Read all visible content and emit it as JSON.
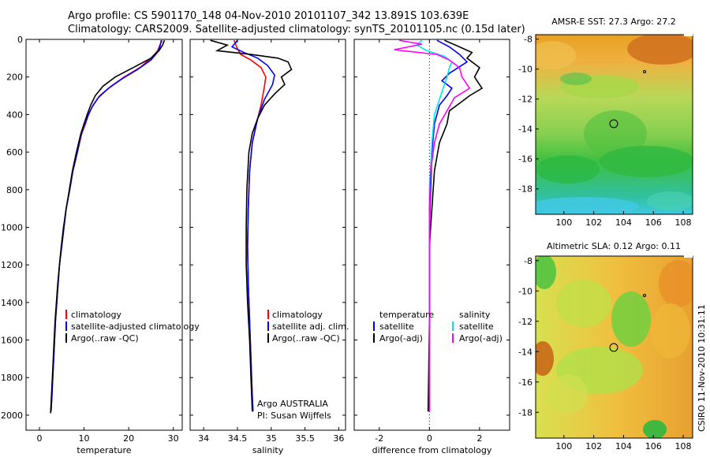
{
  "header": {
    "line1": "Argo profile: CS 5901170_148 04-Nov-2010 20101107_342 13.891S 103.639E",
    "line2": "Climatology: CARS2009. Satellite-adjusted climatology: synTS_20101105.nc (0.15d later)"
  },
  "colors": {
    "climatology": "#ff0000",
    "satellite": "#0000ff",
    "argo": "#000000",
    "salinity_satellite": "#00e5e5",
    "salinity_argo": "#ff00ff"
  },
  "chart_data": [
    {
      "type": "line",
      "id": "temperature",
      "xlabel": "temperature",
      "xlim": [
        -3,
        32
      ],
      "ylim": [
        2080,
        0
      ],
      "xticks": [
        0,
        10,
        20,
        30
      ],
      "xtick_labels": [
        "0",
        "10",
        "20",
        "30"
      ],
      "yticks": [
        0,
        200,
        400,
        600,
        800,
        1000,
        1200,
        1400,
        1600,
        1800,
        2000
      ],
      "ytick_labels": [
        "0",
        "200",
        "400",
        "600",
        "800",
        "1000",
        "1200",
        "1400",
        "1600",
        "1800",
        "2000"
      ],
      "legend": [
        "climatology",
        "satellite-adjusted climatology",
        "Argo(..raw -QC)"
      ],
      "series": [
        {
          "name": "climatology",
          "color": "#ff0000",
          "points": [
            [
              27.5,
              5
            ],
            [
              27,
              30
            ],
            [
              26.5,
              60
            ],
            [
              25,
              100
            ],
            [
              22.5,
              150
            ],
            [
              19,
              200
            ],
            [
              16,
              250
            ],
            [
              13.5,
              300
            ],
            [
              12,
              350
            ],
            [
              11,
              400
            ],
            [
              10.3,
              450
            ],
            [
              9.5,
              500
            ],
            [
              8.5,
              600
            ],
            [
              7.5,
              700
            ],
            [
              6.8,
              800
            ],
            [
              6,
              900
            ],
            [
              5.5,
              1000
            ],
            [
              5,
              1100
            ],
            [
              4.5,
              1200
            ],
            [
              4.2,
              1300
            ],
            [
              3.9,
              1400
            ],
            [
              3.6,
              1500
            ],
            [
              3.4,
              1600
            ],
            [
              3.2,
              1700
            ],
            [
              3,
              1800
            ],
            [
              2.8,
              1900
            ],
            [
              2.6,
              1980
            ]
          ]
        },
        {
          "name": "satellite-adjusted climatology",
          "color": "#0000ff",
          "points": [
            [
              27.3,
              5
            ],
            [
              27,
              40
            ],
            [
              26.4,
              70
            ],
            [
              25,
              110
            ],
            [
              22,
              160
            ],
            [
              18.5,
              210
            ],
            [
              15.5,
              260
            ],
            [
              13.2,
              310
            ],
            [
              11.8,
              360
            ],
            [
              10.8,
              410
            ],
            [
              10,
              460
            ],
            [
              9.3,
              510
            ],
            [
              8.5,
              600
            ],
            [
              7.5,
              700
            ],
            [
              6.8,
              800
            ],
            [
              6,
              900
            ],
            [
              5.5,
              1000
            ],
            [
              5,
              1100
            ],
            [
              4.5,
              1200
            ],
            [
              4.2,
              1300
            ],
            [
              3.9,
              1400
            ],
            [
              3.6,
              1500
            ],
            [
              3.4,
              1600
            ],
            [
              3.2,
              1700
            ],
            [
              3,
              1800
            ],
            [
              2.8,
              1900
            ],
            [
              2.6,
              1980
            ]
          ]
        },
        {
          "name": "Argo(..raw -QC)",
          "color": "#000000",
          "points": [
            [
              28,
              5
            ],
            [
              27.6,
              30
            ],
            [
              26.8,
              60
            ],
            [
              25,
              100
            ],
            [
              21,
              150
            ],
            [
              17,
              200
            ],
            [
              14.2,
              250
            ],
            [
              12.5,
              300
            ],
            [
              11.5,
              350
            ],
            [
              10.7,
              400
            ],
            [
              10,
              450
            ],
            [
              9.3,
              500
            ],
            [
              8.3,
              600
            ],
            [
              7.4,
              700
            ],
            [
              6.7,
              800
            ],
            [
              6,
              900
            ],
            [
              5.4,
              1000
            ],
            [
              4.9,
              1100
            ],
            [
              4.5,
              1200
            ],
            [
              4.1,
              1300
            ],
            [
              3.8,
              1400
            ],
            [
              3.5,
              1500
            ],
            [
              3.3,
              1600
            ],
            [
              3.1,
              1700
            ],
            [
              2.9,
              1800
            ],
            [
              2.7,
              1900
            ],
            [
              2.5,
              1990
            ]
          ]
        }
      ],
      "annotations": []
    },
    {
      "type": "line",
      "id": "salinity",
      "xlabel": "salinity",
      "xlim": [
        33.8,
        36.1
      ],
      "ylim": [
        2080,
        0
      ],
      "xticks": [
        34,
        34.5,
        35,
        35.5,
        36
      ],
      "xtick_labels": [
        "34",
        "34.5",
        "35",
        "35.5",
        "36"
      ],
      "yticks": [],
      "ytick_labels": [],
      "legend": [
        "climatology",
        "satellite adj. clim.",
        "Argo(..raw -QC)"
      ],
      "series": [
        {
          "name": "climatology",
          "color": "#ff0000",
          "points": [
            [
              34.45,
              5
            ],
            [
              34.5,
              50
            ],
            [
              34.55,
              80
            ],
            [
              34.7,
              110
            ],
            [
              34.85,
              150
            ],
            [
              34.92,
              200
            ],
            [
              34.9,
              250
            ],
            [
              34.85,
              350
            ],
            [
              34.78,
              450
            ],
            [
              34.72,
              550
            ],
            [
              34.68,
              700
            ],
            [
              34.66,
              900
            ],
            [
              34.65,
              1100
            ],
            [
              34.66,
              1300
            ],
            [
              34.68,
              1500
            ],
            [
              34.7,
              1700
            ],
            [
              34.72,
              1900
            ],
            [
              34.73,
              1980
            ]
          ]
        },
        {
          "name": "satellite adj. clim.",
          "color": "#0000ff",
          "points": [
            [
              34.5,
              5
            ],
            [
              34.42,
              40
            ],
            [
              34.6,
              70
            ],
            [
              34.8,
              100
            ],
            [
              34.95,
              140
            ],
            [
              35.05,
              190
            ],
            [
              35.02,
              240
            ],
            [
              34.9,
              320
            ],
            [
              34.8,
              420
            ],
            [
              34.72,
              550
            ],
            [
              34.68,
              700
            ],
            [
              34.66,
              900
            ],
            [
              34.65,
              1100
            ],
            [
              34.66,
              1300
            ],
            [
              34.68,
              1500
            ],
            [
              34.7,
              1700
            ],
            [
              34.72,
              1900
            ],
            [
              34.73,
              1980
            ]
          ]
        },
        {
          "name": "Argo(..raw -QC)",
          "color": "#000000",
          "points": [
            [
              34.1,
              5
            ],
            [
              34.35,
              30
            ],
            [
              34.2,
              60
            ],
            [
              34.7,
              80
            ],
            [
              35.1,
              100
            ],
            [
              35.25,
              120
            ],
            [
              35.3,
              160
            ],
            [
              35.15,
              200
            ],
            [
              35.2,
              240
            ],
            [
              35.05,
              290
            ],
            [
              34.9,
              350
            ],
            [
              34.8,
              420
            ],
            [
              34.72,
              500
            ],
            [
              34.67,
              600
            ],
            [
              34.64,
              800
            ],
            [
              34.63,
              1000
            ],
            [
              34.63,
              1200
            ],
            [
              34.65,
              1400
            ],
            [
              34.68,
              1600
            ],
            [
              34.7,
              1800
            ],
            [
              34.72,
              1980
            ]
          ]
        }
      ],
      "annotations": [
        "Argo AUSTRALIA",
        "PI: Susan Wijffels"
      ]
    },
    {
      "type": "line",
      "id": "difference",
      "xlabel": "difference from climatology",
      "xlim": [
        -3,
        3.2
      ],
      "ylim": [
        2080,
        0
      ],
      "xticks": [
        -2,
        0,
        2
      ],
      "xtick_labels": [
        "-2",
        "0",
        "2"
      ],
      "yticks": [],
      "ytick_labels": [],
      "legend_groups": [
        {
          "heading": "temperature",
          "items": [
            "satellite",
            "Argo(-adj)"
          ]
        },
        {
          "heading": "salinity",
          "items": [
            "satellite",
            "Argo(-adj)"
          ]
        }
      ],
      "series": [
        {
          "name": "temperature satellite",
          "color": "#0000ff",
          "points": [
            [
              0.3,
              5
            ],
            [
              0.8,
              40
            ],
            [
              1.2,
              80
            ],
            [
              1.5,
              120
            ],
            [
              0.8,
              180
            ],
            [
              0.5,
              220
            ],
            [
              0.9,
              260
            ],
            [
              0.7,
              300
            ],
            [
              0.4,
              350
            ],
            [
              0.2,
              450
            ],
            [
              0.1,
              600
            ],
            [
              0.05,
              800
            ],
            [
              0,
              1000
            ],
            [
              0,
              1500
            ],
            [
              0,
              1980
            ]
          ]
        },
        {
          "name": "temperature Argo(-adj)",
          "color": "#000000",
          "points": [
            [
              0.6,
              5
            ],
            [
              1.2,
              40
            ],
            [
              1.7,
              70
            ],
            [
              1.5,
              100
            ],
            [
              2,
              150
            ],
            [
              1.8,
              200
            ],
            [
              2.1,
              260
            ],
            [
              1.6,
              300
            ],
            [
              1.2,
              340
            ],
            [
              0.8,
              380
            ],
            [
              0.7,
              450
            ],
            [
              0.4,
              550
            ],
            [
              0.2,
              700
            ],
            [
              0.1,
              900
            ],
            [
              0,
              1100
            ],
            [
              0,
              1500
            ],
            [
              -0.05,
              1980
            ]
          ]
        },
        {
          "name": "salinity satellite",
          "color": "#00e5e5",
          "points": [
            [
              -0.3,
              5
            ],
            [
              -0.5,
              30
            ],
            [
              -0.1,
              60
            ],
            [
              0.6,
              90
            ],
            [
              0.9,
              120
            ],
            [
              0.8,
              150
            ],
            [
              0.7,
              200
            ],
            [
              0.5,
              280
            ],
            [
              0.2,
              400
            ],
            [
              0.1,
              550
            ],
            [
              0,
              800
            ],
            [
              0,
              1200
            ],
            [
              0,
              1600
            ],
            [
              0,
              1980
            ]
          ]
        },
        {
          "name": "salinity Argo(-adj)",
          "color": "#ff00ff",
          "points": [
            [
              -1.2,
              5
            ],
            [
              -0.3,
              25
            ],
            [
              -1.4,
              55
            ],
            [
              0.3,
              80
            ],
            [
              0.8,
              110
            ],
            [
              1.2,
              150
            ],
            [
              1.3,
              200
            ],
            [
              1.6,
              260
            ],
            [
              1.0,
              310
            ],
            [
              0.7,
              380
            ],
            [
              0.4,
              450
            ],
            [
              0.2,
              550
            ],
            [
              0.05,
              700
            ],
            [
              0,
              900
            ],
            [
              0,
              1300
            ],
            [
              0,
              1980
            ]
          ]
        }
      ],
      "annotations": []
    }
  ],
  "maps": [
    {
      "title": "AMSR-E SST: 27.3 Argo: 27.2",
      "xticks": [
        "100",
        "102",
        "104",
        "106",
        "108"
      ],
      "yticks": [
        "-8",
        "-10",
        "-12",
        "-14",
        "-16",
        "-18"
      ]
    },
    {
      "title": "Altimetric SLA: 0.12 Argo: 0.11",
      "xticks": [
        "100",
        "102",
        "104",
        "106",
        "108"
      ],
      "yticks": [
        "-8",
        "-10",
        "-12",
        "-14",
        "-16",
        "-18"
      ]
    }
  ],
  "credit": "CSIRO 11-Nov-2010 10:31:11"
}
